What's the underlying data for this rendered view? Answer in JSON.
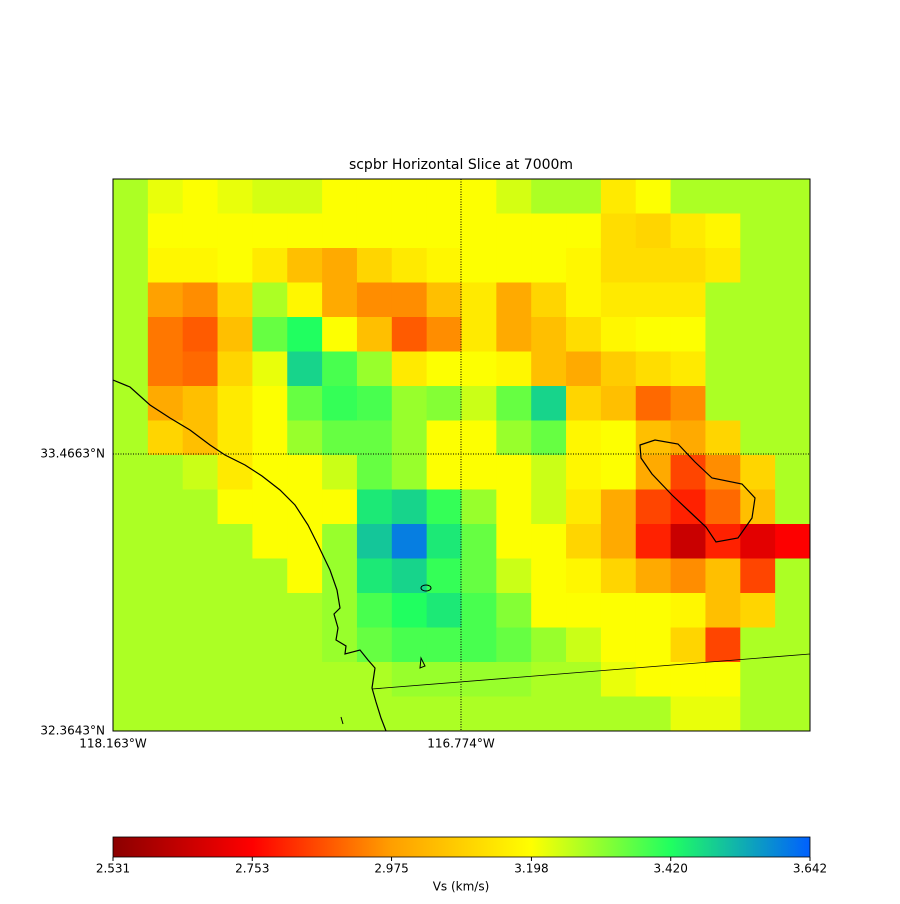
{
  "chart_data": {
    "type": "heatmap",
    "title": "scpbr Horizontal Slice at 7000m",
    "xlim": [
      -118.163,
      -115.381
    ],
    "ylim": [
      32.3643,
      34.5603
    ],
    "xticks": [
      {
        "value": -118.163,
        "label": "118.163°W"
      },
      {
        "value": -116.774,
        "label": "116.774°W"
      }
    ],
    "yticks": [
      {
        "value": 32.3643,
        "label": "32.3643°N"
      },
      {
        "value": 33.4663,
        "label": "33.4663°N"
      }
    ],
    "grid": true,
    "z": [
      [
        3.28,
        3.22,
        3.2,
        3.22,
        3.24,
        3.24,
        3.2,
        3.2,
        3.2,
        3.2,
        3.2,
        3.24,
        3.28,
        3.28,
        3.15,
        3.2,
        3.28,
        3.28,
        3.28,
        3.28
      ],
      [
        3.28,
        3.2,
        3.2,
        3.2,
        3.2,
        3.2,
        3.2,
        3.2,
        3.2,
        3.2,
        3.2,
        3.2,
        3.2,
        3.2,
        3.12,
        3.1,
        3.15,
        3.18,
        3.28,
        3.28
      ],
      [
        3.28,
        3.18,
        3.18,
        3.2,
        3.15,
        3.05,
        3.0,
        3.1,
        3.15,
        3.18,
        3.2,
        3.2,
        3.2,
        3.18,
        3.12,
        3.12,
        3.12,
        3.15,
        3.28,
        3.28
      ],
      [
        3.28,
        2.98,
        2.95,
        3.1,
        3.28,
        3.18,
        3.0,
        2.95,
        2.95,
        3.05,
        3.15,
        3.0,
        3.1,
        3.18,
        3.15,
        3.15,
        3.15,
        3.28,
        3.28,
        3.28
      ],
      [
        3.28,
        2.92,
        2.88,
        3.05,
        3.35,
        3.42,
        3.2,
        3.05,
        2.88,
        2.95,
        3.15,
        3.0,
        3.05,
        3.12,
        3.18,
        3.2,
        3.2,
        3.28,
        3.28,
        3.28
      ],
      [
        3.28,
        2.92,
        2.9,
        3.1,
        3.22,
        3.48,
        3.38,
        3.3,
        3.15,
        3.2,
        3.2,
        3.18,
        3.05,
        3.0,
        3.08,
        3.12,
        3.15,
        3.28,
        3.28,
        3.28
      ],
      [
        3.28,
        3.0,
        3.05,
        3.15,
        3.2,
        3.35,
        3.4,
        3.38,
        3.3,
        3.32,
        3.25,
        3.35,
        3.48,
        3.1,
        3.05,
        2.9,
        2.95,
        3.28,
        3.28,
        3.28
      ],
      [
        3.28,
        3.1,
        3.05,
        3.15,
        3.2,
        3.3,
        3.35,
        3.35,
        3.3,
        3.2,
        3.2,
        3.3,
        3.35,
        3.18,
        3.2,
        3.05,
        3.0,
        3.1,
        3.28,
        3.28
      ],
      [
        3.28,
        3.28,
        3.25,
        3.15,
        3.2,
        3.2,
        3.25,
        3.35,
        3.3,
        3.2,
        3.2,
        3.2,
        3.25,
        3.18,
        3.2,
        3.0,
        2.85,
        2.95,
        3.1,
        3.28
      ],
      [
        3.28,
        3.28,
        3.28,
        3.2,
        3.2,
        3.2,
        3.2,
        3.45,
        3.48,
        3.4,
        3.3,
        3.2,
        3.25,
        3.15,
        3.0,
        2.85,
        2.8,
        2.9,
        3.05,
        3.28
      ],
      [
        3.28,
        3.28,
        3.28,
        3.28,
        3.2,
        3.2,
        3.3,
        3.5,
        3.6,
        3.45,
        3.35,
        3.2,
        3.2,
        3.1,
        3.0,
        2.8,
        2.65,
        2.8,
        2.7,
        2.75
      ],
      [
        3.28,
        3.28,
        3.28,
        3.28,
        3.28,
        3.2,
        3.3,
        3.45,
        3.48,
        3.4,
        3.35,
        3.25,
        3.2,
        3.18,
        3.1,
        3.0,
        2.95,
        3.05,
        2.85,
        3.28
      ],
      [
        3.28,
        3.28,
        3.28,
        3.28,
        3.28,
        3.28,
        3.3,
        3.38,
        3.42,
        3.45,
        3.38,
        3.32,
        3.2,
        3.2,
        3.2,
        3.2,
        3.18,
        3.05,
        3.1,
        3.28
      ],
      [
        3.28,
        3.28,
        3.28,
        3.28,
        3.28,
        3.28,
        3.3,
        3.35,
        3.38,
        3.38,
        3.38,
        3.35,
        3.3,
        3.25,
        3.2,
        3.2,
        3.1,
        2.85,
        3.28,
        3.28
      ],
      [
        3.28,
        3.28,
        3.28,
        3.28,
        3.28,
        3.28,
        3.28,
        3.28,
        3.3,
        3.3,
        3.3,
        3.3,
        3.28,
        3.28,
        3.22,
        3.2,
        3.2,
        3.2,
        3.28,
        3.28
      ],
      [
        3.28,
        3.28,
        3.28,
        3.28,
        3.28,
        3.28,
        3.28,
        3.28,
        3.28,
        3.28,
        3.28,
        3.28,
        3.28,
        3.28,
        3.28,
        3.28,
        3.22,
        3.22,
        3.28,
        3.28
      ]
    ],
    "colorbar": {
      "label": "Vs (km/s)",
      "lim": [
        2.531,
        3.642
      ],
      "ticks": [
        2.531,
        2.753,
        2.975,
        3.198,
        {
          "value": 3.42,
          "label": "3.420"
        },
        3.642
      ],
      "colors": [
        "#8b0000",
        "#ff0000",
        "#ff9f00",
        "#ffff00",
        "#20ff60",
        "#0060ff"
      ]
    }
  }
}
